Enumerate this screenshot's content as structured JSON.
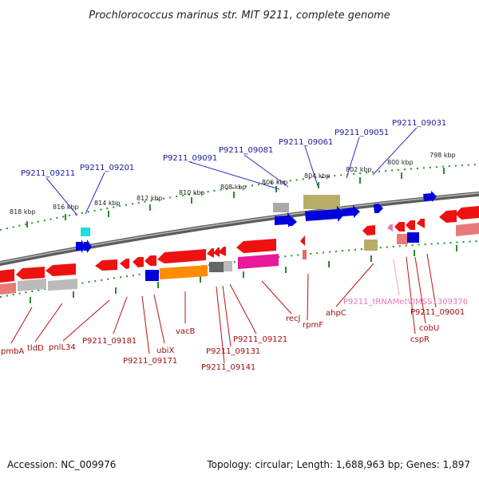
{
  "title": "Prochlorococcus marinus str. MIT 9211, complete genome",
  "footer": {
    "accession": "Accession: NC_009976",
    "summary": "Topology: circular; Length: 1,688,963 bp; Genes: 1,897"
  },
  "scale_ticks": [
    "818 kbp",
    "816 kbp",
    "814 kbp",
    "812 kbp",
    "810 kbp",
    "808 kbp",
    "806 kbp",
    "804 kbp",
    "802 kbp",
    "800 kbp",
    "798 kbp"
  ],
  "top_labels": [
    "P9211_09211",
    "P9211_09201",
    "P9211_09091",
    "P9211_09081",
    "P9211_09061",
    "P9211_09051",
    "P9211_09031"
  ],
  "bottom_labels": [
    "pmbA",
    "tldD",
    "pnlL34",
    "P9211_09181",
    "P9211_09171",
    "ubiX",
    "vacB",
    "P9211_09131",
    "P9211_09141",
    "P9211_09121",
    "recJ",
    "rpmF",
    "ahpC",
    "P9211_tRNAMetVIMSS1309376",
    "P9211_09001",
    "cobU",
    "cspR"
  ],
  "colors": {
    "backbone": "#8a8a8a",
    "scale_dots": "#2a8a2a",
    "forward_gene": "#0000dd",
    "reverse_gene": "#ee1111",
    "label_blue": "#1a1a9a",
    "label_red": "#a01010",
    "trna": "#e478b8",
    "olive": "#b8ae6a",
    "orange": "#ff8c00",
    "magenta": "#e8199a",
    "cyan": "#22dddd"
  }
}
